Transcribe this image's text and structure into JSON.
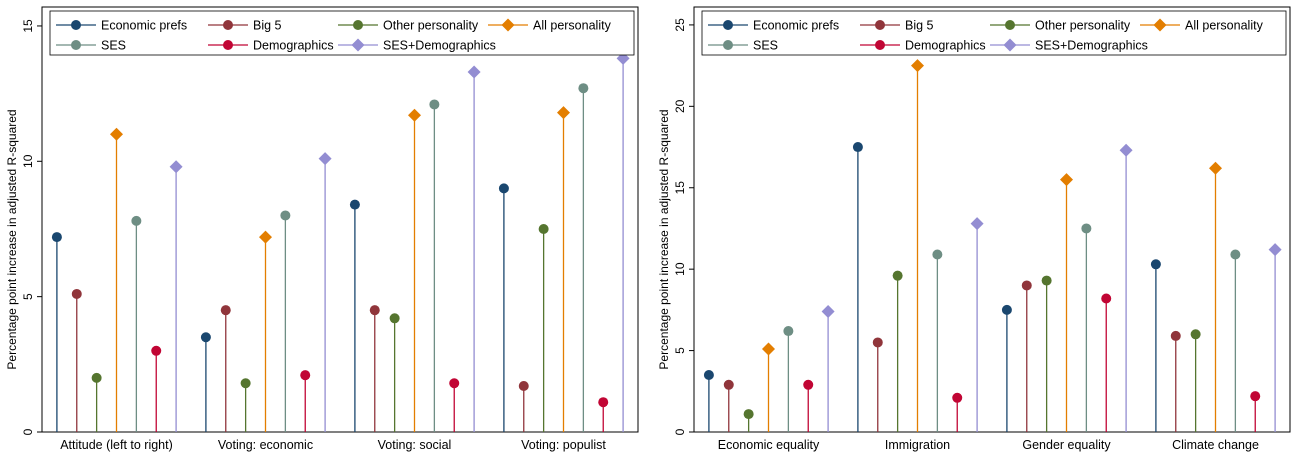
{
  "chart_data": [
    {
      "type": "scatter",
      "ylabel": "Percentage point increase in adjusted R-squared",
      "xlabel": "",
      "categories": [
        "Attitude (left to right)",
        "Voting: economic",
        "Voting: social",
        "Voting: populist"
      ],
      "ylim": [
        0,
        15.7
      ],
      "yticks": [
        0,
        5,
        10,
        15
      ],
      "grid": false,
      "legend": "top",
      "series": [
        {
          "name": "Economic prefs",
          "color": "#1a476f",
          "marker": "circle",
          "values": [
            7.2,
            3.5,
            8.4,
            9.0
          ]
        },
        {
          "name": "Big 5",
          "color": "#90353b",
          "marker": "circle",
          "values": [
            5.1,
            4.5,
            4.5,
            1.7
          ]
        },
        {
          "name": "Other personality",
          "color": "#55752f",
          "marker": "circle",
          "values": [
            2.0,
            1.8,
            4.2,
            7.5
          ]
        },
        {
          "name": "All personality",
          "color": "#e37e00",
          "marker": "diamond",
          "values": [
            11.0,
            7.2,
            11.7,
            11.8
          ]
        },
        {
          "name": "SES",
          "color": "#6e8e84",
          "marker": "circle",
          "values": [
            7.8,
            8.0,
            12.1,
            12.7
          ]
        },
        {
          "name": "Demographics",
          "color": "#c10534",
          "marker": "circle",
          "values": [
            3.0,
            2.1,
            1.8,
            1.1
          ]
        },
        {
          "name": "SES+Demographics",
          "color": "#938dd2",
          "marker": "diamond",
          "values": [
            9.8,
            10.1,
            13.3,
            13.8
          ]
        }
      ]
    },
    {
      "type": "scatter",
      "ylabel": "Percentage point increase in adjusted R-squared",
      "xlabel": "",
      "categories": [
        "Economic equality",
        "Immigration",
        "Gender equality",
        "Climate change"
      ],
      "ylim": [
        0,
        26.1
      ],
      "yticks": [
        0,
        5,
        10,
        15,
        20,
        25
      ],
      "grid": false,
      "legend": "top",
      "series": [
        {
          "name": "Economic prefs",
          "color": "#1a476f",
          "marker": "circle",
          "values": [
            3.5,
            17.5,
            7.5,
            10.3
          ]
        },
        {
          "name": "Big 5",
          "color": "#90353b",
          "marker": "circle",
          "values": [
            2.9,
            5.5,
            9.0,
            5.9
          ]
        },
        {
          "name": "Other personality",
          "color": "#55752f",
          "marker": "circle",
          "values": [
            1.1,
            9.6,
            9.3,
            6.0
          ]
        },
        {
          "name": "All personality",
          "color": "#e37e00",
          "marker": "diamond",
          "values": [
            5.1,
            22.5,
            15.5,
            16.2
          ]
        },
        {
          "name": "SES",
          "color": "#6e8e84",
          "marker": "circle",
          "values": [
            6.2,
            10.9,
            12.5,
            10.9
          ]
        },
        {
          "name": "Demographics",
          "color": "#c10534",
          "marker": "circle",
          "values": [
            2.9,
            2.1,
            8.2,
            2.2
          ]
        },
        {
          "name": "SES+Demographics",
          "color": "#938dd2",
          "marker": "diamond",
          "values": [
            7.4,
            12.8,
            17.3,
            11.2
          ]
        }
      ]
    }
  ]
}
